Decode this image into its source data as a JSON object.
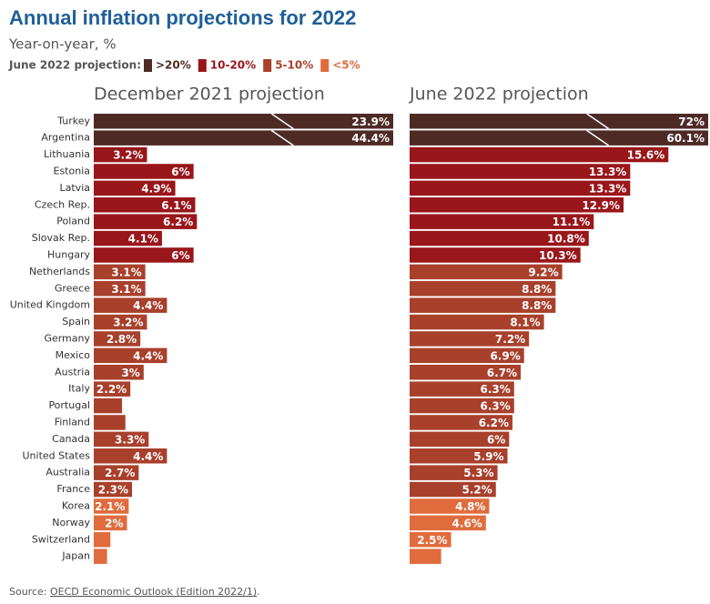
{
  "chart_data": {
    "type": "bar",
    "orientation": "horizontal",
    "title": "Annual inflation projections for 2022",
    "subtitle": "Year-on-year, %",
    "legend": {
      "title": "June 2022 projection:",
      "items": [
        {
          "label": ">20%",
          "color": "#4e2a25"
        },
        {
          "label": "10-20%",
          "color": "#99161a"
        },
        {
          "label": "5-10%",
          "color": "#a8402c"
        },
        {
          "label": "<5%",
          "color": "#e06c3e"
        }
      ]
    },
    "categories": [
      "Turkey",
      "Argentina",
      "Lithuania",
      "Estonia",
      "Latvia",
      "Czech Rep.",
      "Poland",
      "Slovak Rep.",
      "Hungary",
      "Netherlands",
      "Greece",
      "United Kingdom",
      "Spain",
      "Germany",
      "Mexico",
      "Austria",
      "Italy",
      "Portugal",
      "Finland",
      "Canada",
      "United States",
      "Australia",
      "France",
      "Korea",
      "Norway",
      "Switzerland",
      "Japan"
    ],
    "bar_colors": [
      "#4e2a25",
      "#4e2a25",
      "#99161a",
      "#99161a",
      "#99161a",
      "#99161a",
      "#99161a",
      "#99161a",
      "#99161a",
      "#a8402c",
      "#a8402c",
      "#a8402c",
      "#a8402c",
      "#a8402c",
      "#a8402c",
      "#a8402c",
      "#a8402c",
      "#a8402c",
      "#a8402c",
      "#a8402c",
      "#a8402c",
      "#a8402c",
      "#a8402c",
      "#e06c3e",
      "#e06c3e",
      "#e06c3e",
      "#e06c3e"
    ],
    "series": [
      {
        "name": "December 2021 projection",
        "values": [
          23.9,
          44.4,
          3.2,
          6,
          4.9,
          6.1,
          6.2,
          4.1,
          6,
          3.1,
          3.1,
          4.4,
          3.2,
          2.8,
          4.4,
          3,
          2.2,
          1.7,
          1.9,
          3.3,
          4.4,
          2.7,
          2.3,
          2.1,
          2,
          1.0,
          0.8
        ],
        "value_labels": [
          "23.9%",
          "44.4%",
          "3.2%",
          "6%",
          "4.9%",
          "6.1%",
          "6.2%",
          "4.1%",
          "6%",
          "3.1%",
          "3.1%",
          "4.4%",
          "3.2%",
          "2.8%",
          "4.4%",
          "3%",
          "2.2%",
          null,
          null,
          "3.3%",
          "4.4%",
          "2.7%",
          "2.3%",
          "2.1%",
          "2%",
          null,
          null
        ]
      },
      {
        "name": "June 2022 projection",
        "values": [
          72,
          60.1,
          15.6,
          13.3,
          13.3,
          12.9,
          11.1,
          10.8,
          10.3,
          9.2,
          8.8,
          8.8,
          8.1,
          7.2,
          6.9,
          6.7,
          6.3,
          6.3,
          6.2,
          6,
          5.9,
          5.3,
          5.2,
          4.8,
          4.6,
          2.5,
          1.9
        ],
        "value_labels": [
          "72%",
          "60.1%",
          "15.6%",
          "13.3%",
          "13.3%",
          "12.9%",
          "11.1%",
          "10.8%",
          "10.3%",
          "9.2%",
          "8.8%",
          "8.8%",
          "8.1%",
          "7.2%",
          "6.9%",
          "6.7%",
          "6.3%",
          "6.3%",
          "6.2%",
          "6%",
          "5.9%",
          "5.3%",
          "5.2%",
          "4.8%",
          "4.6%",
          "2.5%",
          null
        ]
      }
    ],
    "xlim": [
      0,
      18
    ],
    "source": {
      "prefix": "Source:",
      "link": "OECD Economic Outlook (Edition 2022/1)",
      "suffix": "."
    }
  }
}
